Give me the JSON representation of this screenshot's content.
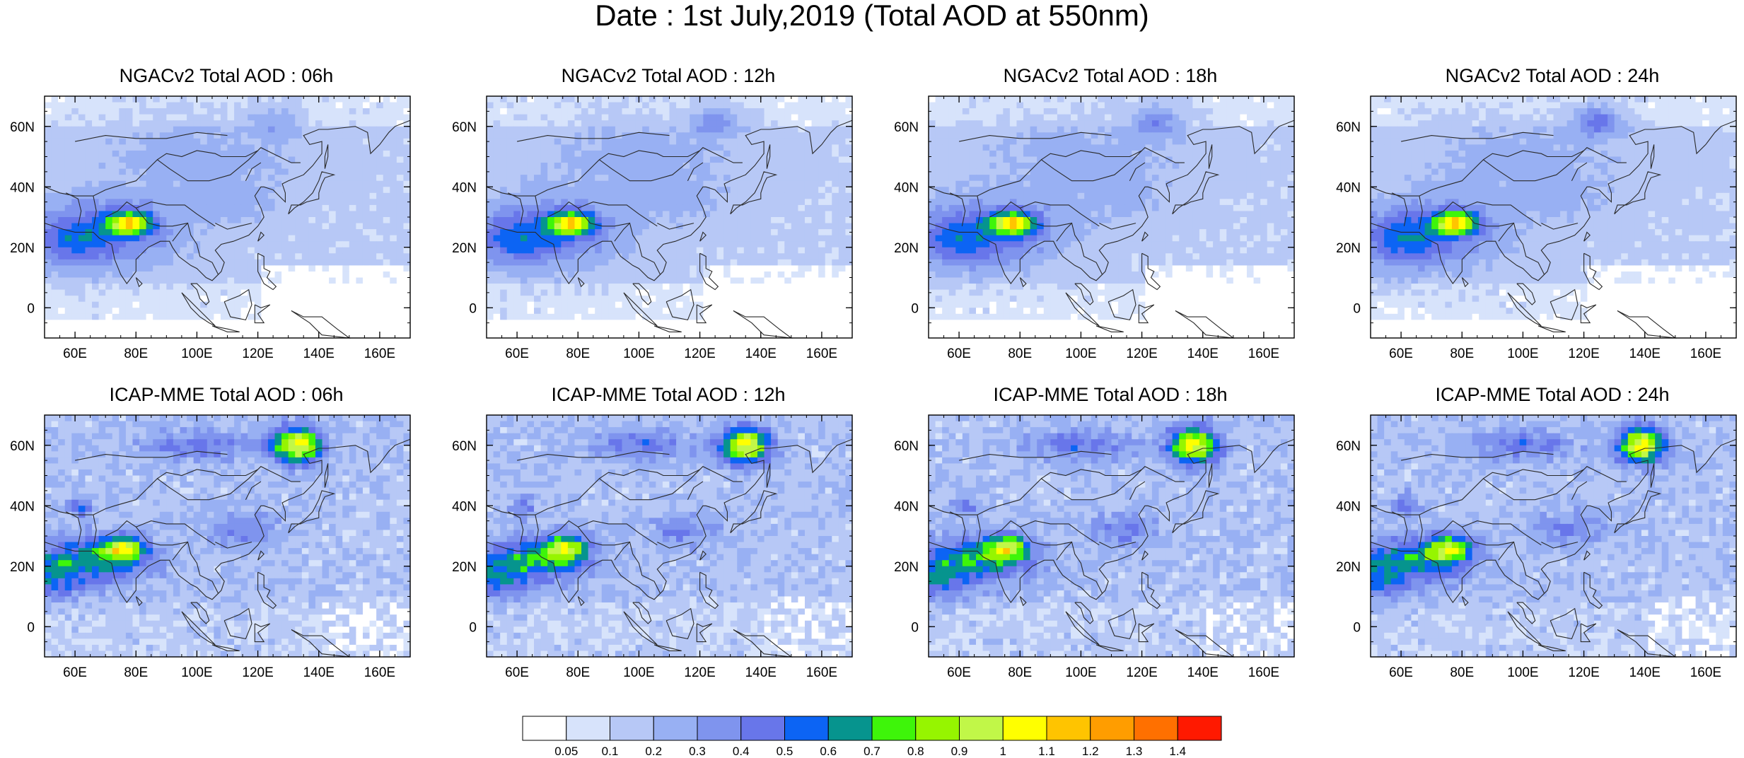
{
  "title": "Date : 1st July,2019 (Total AOD at 550nm)",
  "chart_data": {
    "type": "heatmap",
    "title": "Date : 1st July,2019 (Total AOD at 550nm)",
    "x_ticks": [
      "60E",
      "80E",
      "100E",
      "120E",
      "140E",
      "160E"
    ],
    "x_tick_values": [
      60,
      80,
      100,
      120,
      140,
      160
    ],
    "y_ticks": [
      "60N",
      "40N",
      "20N",
      "0"
    ],
    "y_tick_values": [
      60,
      40,
      20,
      0
    ],
    "xlim": [
      50,
      170
    ],
    "ylim": [
      -10,
      70
    ],
    "colorbar": {
      "labels": [
        "0.05",
        "0.1",
        "0.2",
        "0.3",
        "0.4",
        "0.5",
        "0.6",
        "0.7",
        "0.8",
        "0.9",
        "1",
        "1.1",
        "1.2",
        "1.3",
        "1.4"
      ],
      "colors": [
        "#ffffff",
        "#d7e3fb",
        "#b7c8f6",
        "#98b0f3",
        "#7f94ee",
        "#6876ea",
        "#0c64f4",
        "#06948e",
        "#3ef50a",
        "#96f500",
        "#c1f748",
        "#ffff00",
        "#ffc400",
        "#ff9d00",
        "#ff7000",
        "#ff1900"
      ]
    },
    "panels": [
      {
        "title": "NGACv2 Total AOD : 06h",
        "model": "NGACv2",
        "hour": "06h"
      },
      {
        "title": "NGACv2 Total AOD : 12h",
        "model": "NGACv2",
        "hour": "12h"
      },
      {
        "title": "NGACv2 Total AOD : 18h",
        "model": "NGACv2",
        "hour": "18h"
      },
      {
        "title": "NGACv2 Total AOD : 24h",
        "model": "NGACv2",
        "hour": "24h"
      },
      {
        "title": "ICAP-MME Total AOD : 06h",
        "model": "ICAP-MME",
        "hour": "06h"
      },
      {
        "title": "ICAP-MME Total AOD : 12h",
        "model": "ICAP-MME",
        "hour": "12h"
      },
      {
        "title": "ICAP-MME Total AOD : 18h",
        "model": "ICAP-MME",
        "hour": "18h"
      },
      {
        "title": "ICAP-MME Total AOD : 24h",
        "model": "ICAP-MME",
        "hour": "24h"
      }
    ]
  }
}
